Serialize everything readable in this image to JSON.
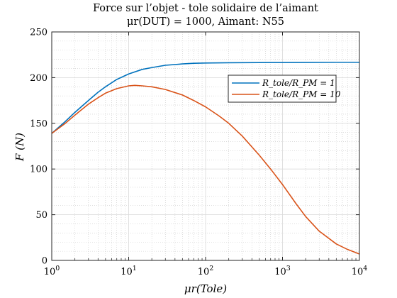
{
  "chart_data": {
    "type": "line",
    "title": "Force sur l’objet - tole solidaire de l’aimant",
    "subtitle": "μr(DUT) = 1000, Aimant: N55",
    "xlabel": "μr(Tole)",
    "ylabel": "F (N)",
    "x_scale": "log",
    "xlim": [
      1,
      10000
    ],
    "ylim": [
      0,
      250
    ],
    "x_ticks": [
      1,
      10,
      100,
      1000,
      10000
    ],
    "x_tick_labels": [
      "10^0",
      "10^1",
      "10^2",
      "10^3",
      "10^4"
    ],
    "y_ticks": [
      0,
      50,
      100,
      150,
      200,
      250
    ],
    "grid": true,
    "minor_grid": true,
    "legend_position": "upper-right",
    "series": [
      {
        "name": "R_tole/R_PM = 1",
        "color": "#0072BD",
        "x": [
          1,
          1.5,
          2,
          3,
          4,
          5,
          7,
          10,
          15,
          20,
          30,
          50,
          70,
          100,
          200,
          500,
          1000,
          2000,
          5000,
          10000
        ],
        "y": [
          139,
          152,
          162,
          175,
          184,
          190,
          198,
          204,
          209,
          211,
          213.5,
          215,
          215.7,
          216,
          216.3,
          216.5,
          216.6,
          216.7,
          216.8,
          216.8
        ]
      },
      {
        "name": "R_tole/R_PM = 10",
        "color": "#D95319",
        "x": [
          1,
          1.5,
          2,
          3,
          4,
          5,
          7,
          10,
          12,
          15,
          20,
          30,
          50,
          70,
          100,
          150,
          200,
          300,
          500,
          700,
          1000,
          1500,
          2000,
          3000,
          5000,
          7000,
          10000
        ],
        "y": [
          139,
          150,
          159,
          171,
          178,
          183,
          188,
          191,
          191.5,
          191,
          190,
          187,
          181,
          175,
          168,
          158,
          150,
          136,
          115,
          100,
          83,
          62,
          48,
          32,
          18,
          12,
          7
        ]
      }
    ]
  }
}
